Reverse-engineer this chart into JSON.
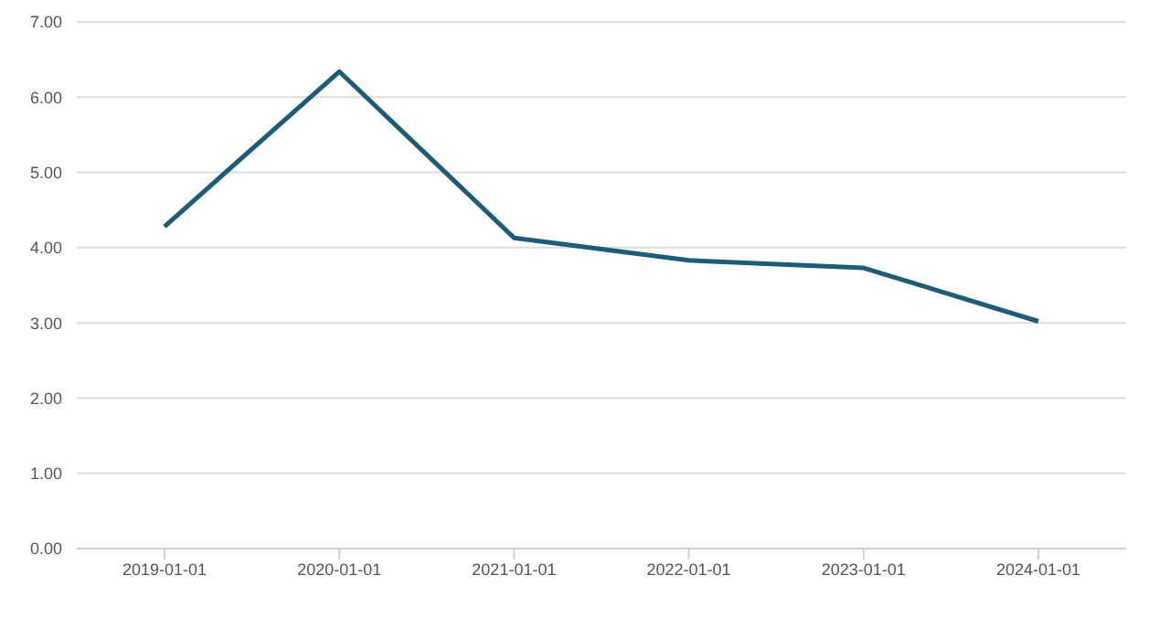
{
  "chart_data": {
    "type": "line",
    "categories": [
      "2019-01-01",
      "2020-01-01",
      "2021-01-01",
      "2022-01-01",
      "2023-01-01",
      "2024-01-01"
    ],
    "series": [
      {
        "color": "#1d5c78",
        "values": [
          4.28,
          6.34,
          4.13,
          3.83,
          3.73,
          3.02
        ]
      }
    ],
    "ylim": [
      0,
      7
    ],
    "yticks": [
      {
        "value": 0,
        "label": "0.00"
      },
      {
        "value": 1,
        "label": "1.00"
      },
      {
        "value": 2,
        "label": "2.00"
      },
      {
        "value": 3,
        "label": "3.00"
      },
      {
        "value": 4,
        "label": "4.00"
      },
      {
        "value": 5,
        "label": "5.00"
      },
      {
        "value": 6,
        "label": "6.00"
      },
      {
        "value": 7,
        "label": "7.00"
      }
    ],
    "grid": "y",
    "marker": "none",
    "line_style": "solid"
  }
}
